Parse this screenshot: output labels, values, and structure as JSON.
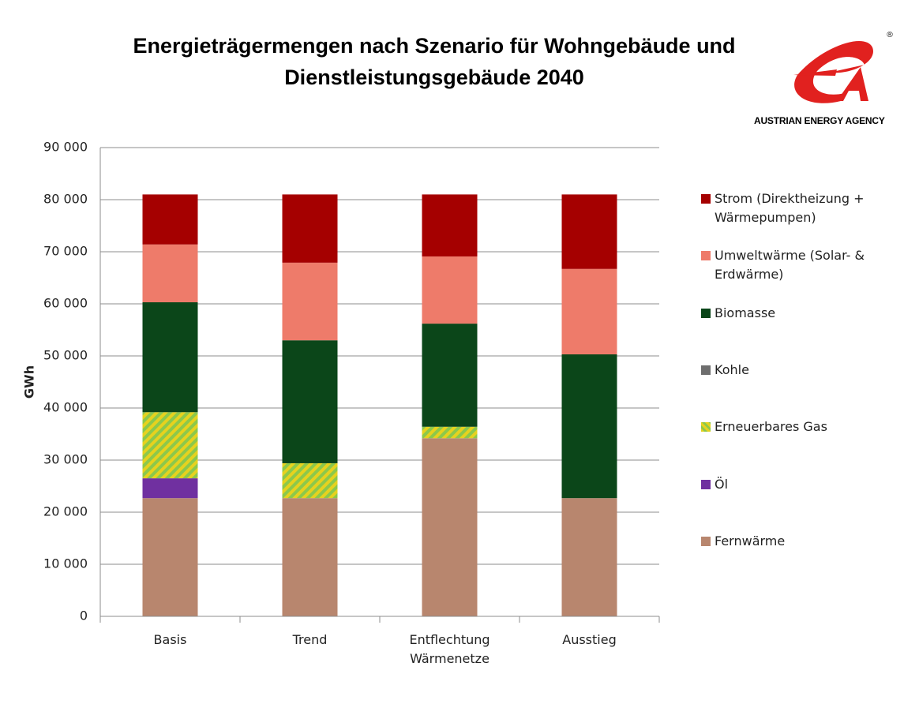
{
  "chart_data": {
    "type": "stacked_bar",
    "title": "Energieträgermengen nach Szenario für Wohngebäude und Dienstleistungsgebäude 2040",
    "logo_text": "AUSTRIAN ENERGY AGENCY",
    "logo_mark": "®",
    "y_label": "GWh",
    "categories": [
      "Basis",
      "Trend",
      "Entflechtung Wärmenetze",
      "Ausstieg"
    ],
    "series": [
      {
        "name": "Fernwärme",
        "color": "#b8866e",
        "values": [
          22700,
          22700,
          34200,
          22700
        ]
      },
      {
        "name": "Öl",
        "color": "#7030a0",
        "values": [
          3800,
          0,
          0,
          0
        ]
      },
      {
        "name": "Erneuerbares Gas",
        "color": "#e6d21e",
        "hatch": "#8cc84b",
        "values": [
          12700,
          6700,
          2200,
          0
        ]
      },
      {
        "name": "Kohle",
        "color": "#6e6e6e",
        "values": [
          0,
          0,
          0,
          0
        ]
      },
      {
        "name": "Biomasse",
        "color": "#0b4619",
        "values": [
          21100,
          23600,
          19800,
          27600
        ]
      },
      {
        "name": "Umweltwärme (Solar- & Erdwärme)",
        "color": "#ee7b6a",
        "values": [
          11100,
          14900,
          12900,
          16400
        ]
      },
      {
        "name": "Strom (Direktheizung + Wärmepumpen)",
        "color": "#a50000",
        "values": [
          9600,
          13100,
          11900,
          14300
        ]
      }
    ],
    "ylim": [
      0,
      90000
    ],
    "yticks": [
      0,
      {
        "value": 10000,
        "label": "10 000"
      },
      {
        "value": 20000,
        "label": "20 000"
      },
      {
        "value": 30000,
        "label": "30 000"
      },
      {
        "value": 40000,
        "label": "40 000"
      },
      {
        "value": 50000,
        "label": "50 000"
      },
      {
        "value": 60000,
        "label": "60 000"
      },
      {
        "value": 70000,
        "label": "70 000"
      },
      {
        "value": 80000,
        "label": "80 000"
      },
      {
        "value": 90000,
        "label": "90 000"
      }
    ],
    "grid": true,
    "legend": "right"
  }
}
